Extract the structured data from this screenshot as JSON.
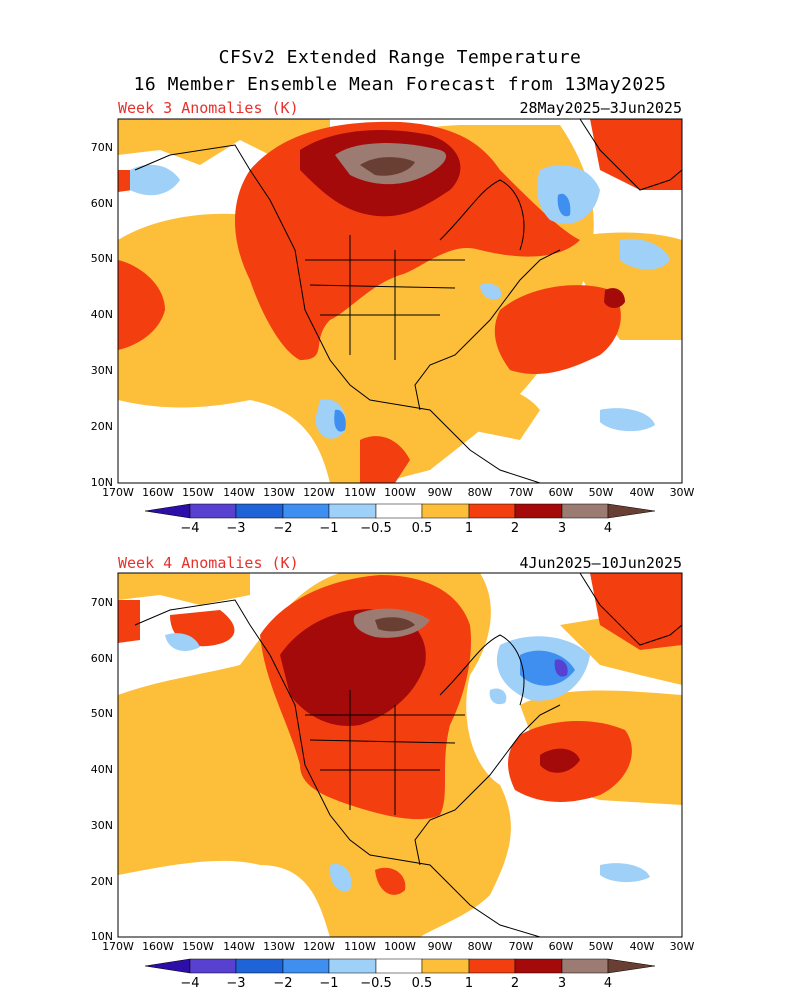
{
  "title_line1": "CFSv2 Extended Range Temperature",
  "title_line2": "16 Member Ensemble Mean Forecast from 13May2025",
  "panels": [
    {
      "label": "Week 3 Anomalies (K)",
      "dates": "28May2025—3Jun2025"
    },
    {
      "label": "Week 4 Anomalies (K)",
      "dates": "4Jun2025—10Jun2025"
    }
  ],
  "lon_ticks": [
    "170W",
    "160W",
    "150W",
    "140W",
    "130W",
    "120W",
    "110W",
    "100W",
    "90W",
    "80W",
    "70W",
    "60W",
    "50W",
    "40W",
    "30W"
  ],
  "lat_ticks": [
    "70N",
    "60N",
    "50N",
    "40N",
    "30N",
    "20N",
    "10N"
  ],
  "colorbar": {
    "labels": [
      "−4",
      "−3",
      "−2",
      "−1",
      "−0.5",
      "0.5",
      "1",
      "2",
      "3",
      "4"
    ],
    "colors": [
      "#2d0ea8",
      "#5840d0",
      "#1e64d8",
      "#3f8ff0",
      "#9fd0f8",
      "#ffffff",
      "#fdbe3a",
      "#f33e10",
      "#a50a0a",
      "#9c7b73",
      "#6a3f33"
    ]
  }
}
